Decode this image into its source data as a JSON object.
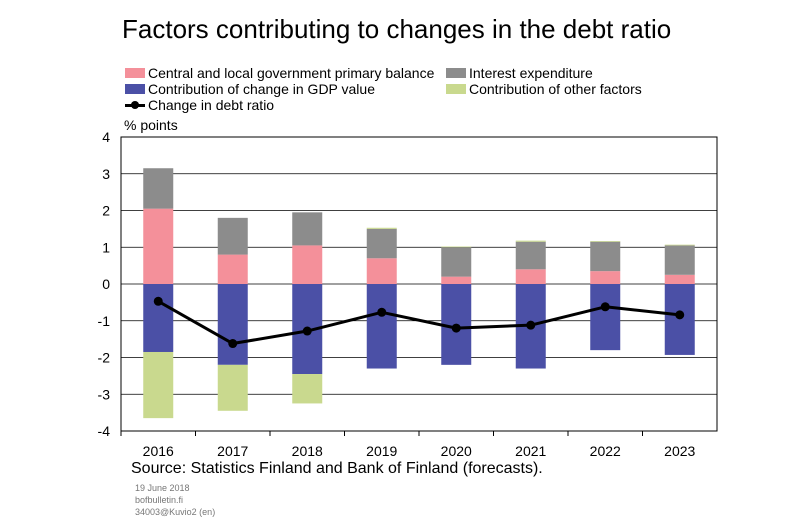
{
  "chart_data": {
    "type": "bar",
    "title": "Factors contributing to changes in the debt ratio",
    "ylabel": "% points",
    "xlabel": "",
    "ylim": [
      -4,
      4
    ],
    "yticks": [
      4,
      3,
      2,
      1,
      0,
      -1,
      -2,
      -3,
      -4
    ],
    "categories": [
      "2016",
      "2017",
      "2018",
      "2019",
      "2020",
      "2021",
      "2022",
      "2023"
    ],
    "legend_position": "top",
    "series": [
      {
        "name": "Central and local government primary balance",
        "kind": "bar",
        "color": "#f4909a",
        "values": [
          2.05,
          0.8,
          1.05,
          0.7,
          0.2,
          0.4,
          0.35,
          0.25
        ]
      },
      {
        "name": "Interest expenditure",
        "kind": "bar",
        "color": "#8c8c8c",
        "values": [
          1.1,
          1.0,
          0.9,
          0.8,
          0.8,
          0.75,
          0.8,
          0.8
        ]
      },
      {
        "name": "Contribution of change in GDP value",
        "kind": "bar",
        "color": "#4b50a6",
        "values": [
          -1.85,
          -2.2,
          -2.45,
          -2.3,
          -2.2,
          -2.3,
          -1.8,
          -1.93
        ]
      },
      {
        "name": "Contribution of other factors",
        "kind": "bar",
        "color": "#c9d98e",
        "values": [
          -1.8,
          -1.25,
          -0.8,
          0.03,
          0.02,
          0.03,
          0.02,
          0.02
        ]
      },
      {
        "name": "Change in debt ratio",
        "kind": "line",
        "color": "#000000",
        "values": [
          -0.47,
          -1.62,
          -1.28,
          -0.77,
          -1.2,
          -1.12,
          -0.62,
          -0.84
        ]
      }
    ]
  },
  "legend": [
    {
      "label": "Central and local government primary balance",
      "color": "#f4909a",
      "kind": "bar"
    },
    {
      "label": "Interest expenditure",
      "color": "#8c8c8c",
      "kind": "bar"
    },
    {
      "label": "Contribution of change in GDP value",
      "color": "#4b50a6",
      "kind": "bar"
    },
    {
      "label": "Contribution of other factors",
      "color": "#c9d98e",
      "kind": "bar"
    },
    {
      "label": "Change in debt ratio",
      "color": "#000000",
      "kind": "line"
    }
  ],
  "source": "Source: Statistics Finland and Bank of Finland (forecasts).",
  "footer": {
    "date": "19 June 2018",
    "site": "bofbulletin.fi",
    "code": "34003@Kuvio2 (en)"
  }
}
